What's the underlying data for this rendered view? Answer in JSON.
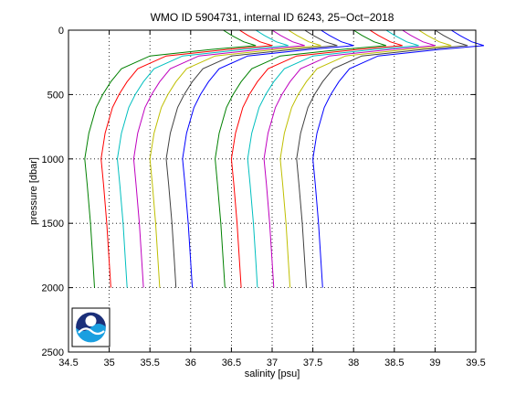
{
  "chart_data": {
    "type": "line",
    "title": "WMO ID 5904731, internal ID 6243, 25−Oct−2018",
    "xlabel": "salinity [psu]",
    "ylabel": "pressure [dbar]",
    "xlim": [
      34.5,
      39.5
    ],
    "ylim": [
      0,
      2500
    ],
    "y_reversed": true,
    "grid": true,
    "grid_style": "dotted",
    "xticks": [
      "34.5",
      "35",
      "35.5",
      "36",
      "36.5",
      "37",
      "37.5",
      "38",
      "38.5",
      "39",
      "39.5"
    ],
    "yticks": [
      "0",
      "500",
      "1000",
      "1500",
      "2000",
      "2500"
    ],
    "logo": "noaa-logo",
    "profile_shape": {
      "pressure": [
        0,
        40,
        90,
        120,
        150,
        200,
        300,
        400,
        500,
        600,
        800,
        1000,
        1200,
        1500,
        1800,
        2000
      ],
      "offset": [
        1.7,
        1.8,
        1.95,
        2.1,
        1.55,
        0.8,
        0.45,
        0.32,
        0.22,
        0.14,
        0.05,
        0.0,
        0.03,
        0.07,
        0.1,
        0.12
      ]
    },
    "series": [
      {
        "color": "#008000",
        "base": 34.7
      },
      {
        "color": "#ff0000",
        "base": 34.9
      },
      {
        "color": "#00bfbf",
        "base": 35.1
      },
      {
        "color": "#bf00bf",
        "base": 35.3
      },
      {
        "color": "#bfbf00",
        "base": 35.5
      },
      {
        "color": "#404040",
        "base": 35.7
      },
      {
        "color": "#0000ff",
        "base": 35.9
      },
      {
        "color": "#008000",
        "base": 36.3
      },
      {
        "color": "#ff0000",
        "base": 36.5
      },
      {
        "color": "#00bfbf",
        "base": 36.7
      },
      {
        "color": "#bf00bf",
        "base": 36.9
      },
      {
        "color": "#bfbf00",
        "base": 37.1
      },
      {
        "color": "#404040",
        "base": 37.3
      },
      {
        "color": "#0000ff",
        "base": 37.5
      }
    ]
  }
}
